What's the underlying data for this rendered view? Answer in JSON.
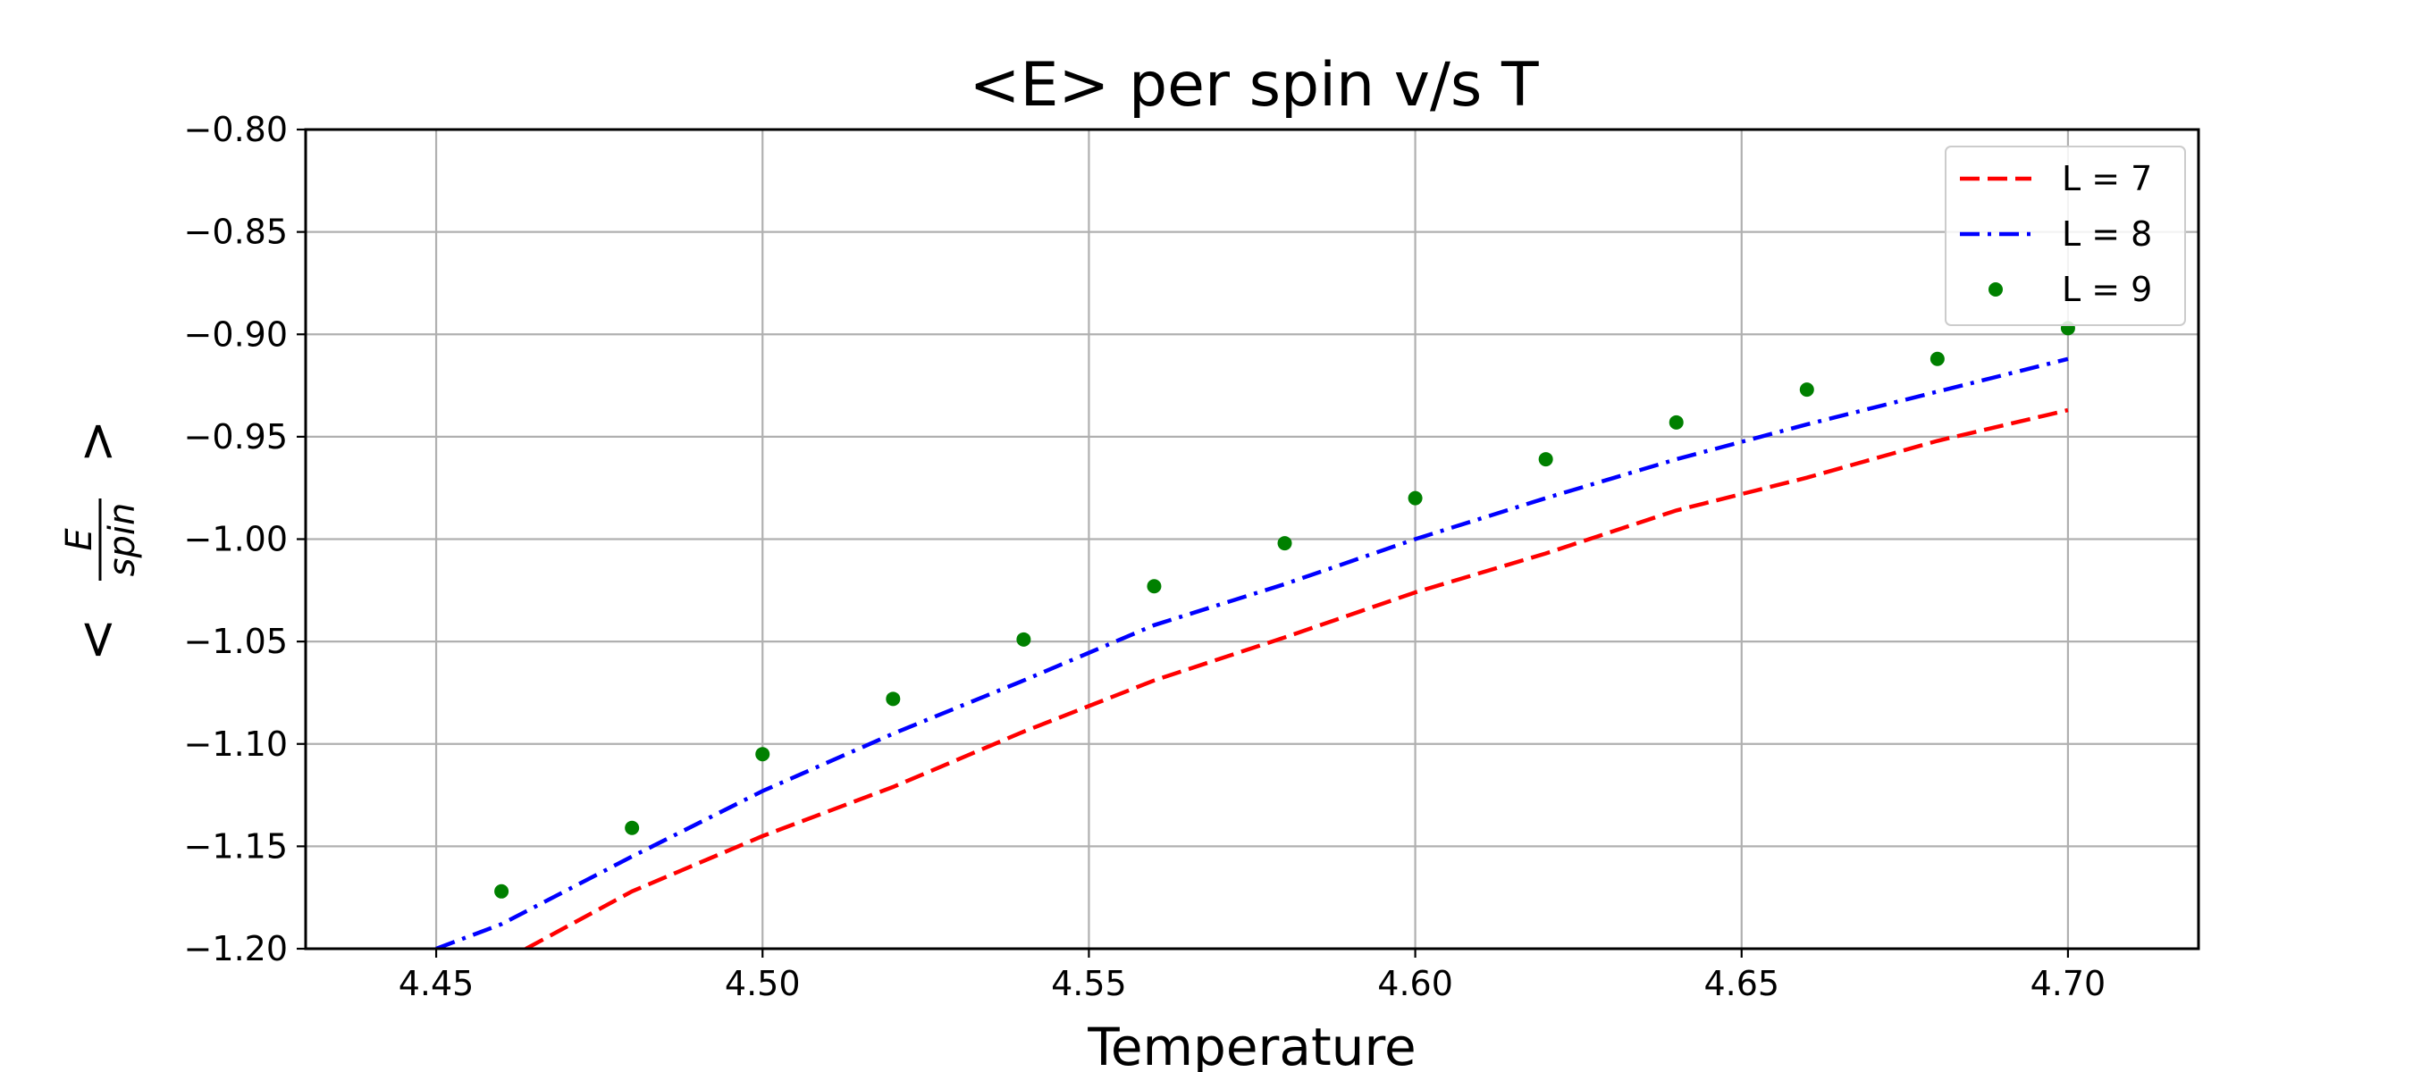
{
  "chart_data": {
    "type": "line",
    "title": "<E> per spin v/s T",
    "xlabel": "Temperature",
    "ylabel": {
      "lt": "<",
      "numerator": "E",
      "denominator": "spin",
      "gt": ">"
    },
    "xlim": [
      4.43,
      4.72
    ],
    "ylim": [
      -1.2,
      -0.8
    ],
    "xticks": [
      4.45,
      4.5,
      4.55,
      4.6,
      4.65,
      4.7
    ],
    "xtick_labels": [
      "4.45",
      "4.50",
      "4.55",
      "4.60",
      "4.65",
      "4.70"
    ],
    "yticks": [
      -0.8,
      -0.85,
      -0.9,
      -0.95,
      -1.0,
      -1.05,
      -1.1,
      -1.15,
      -1.2
    ],
    "ytick_labels": [
      "−0.80",
      "−0.85",
      "−0.90",
      "−0.95",
      "−1.00",
      "−1.05",
      "−1.10",
      "−1.15",
      "−1.20"
    ],
    "grid": true,
    "legend": "upper right",
    "series": [
      {
        "name": "L = 7",
        "style": "dashed",
        "color": "#ff0000",
        "x": [
          4.46,
          4.48,
          4.5,
          4.52,
          4.54,
          4.56,
          4.58,
          4.6,
          4.62,
          4.64,
          4.66,
          4.68,
          4.7
        ],
        "y": [
          -1.2065,
          -1.172,
          -1.145,
          -1.121,
          -1.094,
          -1.069,
          -1.048,
          -1.026,
          -1.007,
          -0.986,
          -0.97,
          -0.952,
          -0.937
        ]
      },
      {
        "name": "L = 8",
        "style": "dashdot",
        "color": "#0000ff",
        "x": [
          4.45,
          4.46,
          4.48,
          4.5,
          4.52,
          4.54,
          4.56,
          4.58,
          4.6,
          4.62,
          4.64,
          4.66,
          4.68,
          4.7
        ],
        "y": [
          -1.2,
          -1.188,
          -1.155,
          -1.123,
          -1.095,
          -1.069,
          -1.042,
          -1.022,
          -1.0,
          -0.98,
          -0.961,
          -0.944,
          -0.928,
          -0.912
        ]
      },
      {
        "name": "L = 9",
        "style": "points",
        "color": "#008000",
        "x": [
          4.46,
          4.48,
          4.5,
          4.52,
          4.54,
          4.56,
          4.58,
          4.6,
          4.62,
          4.64,
          4.66,
          4.68,
          4.7
        ],
        "y": [
          -1.172,
          -1.141,
          -1.105,
          -1.078,
          -1.049,
          -1.023,
          -1.002,
          -0.98,
          -0.961,
          -0.943,
          -0.927,
          -0.912,
          -0.897
        ]
      }
    ]
  }
}
